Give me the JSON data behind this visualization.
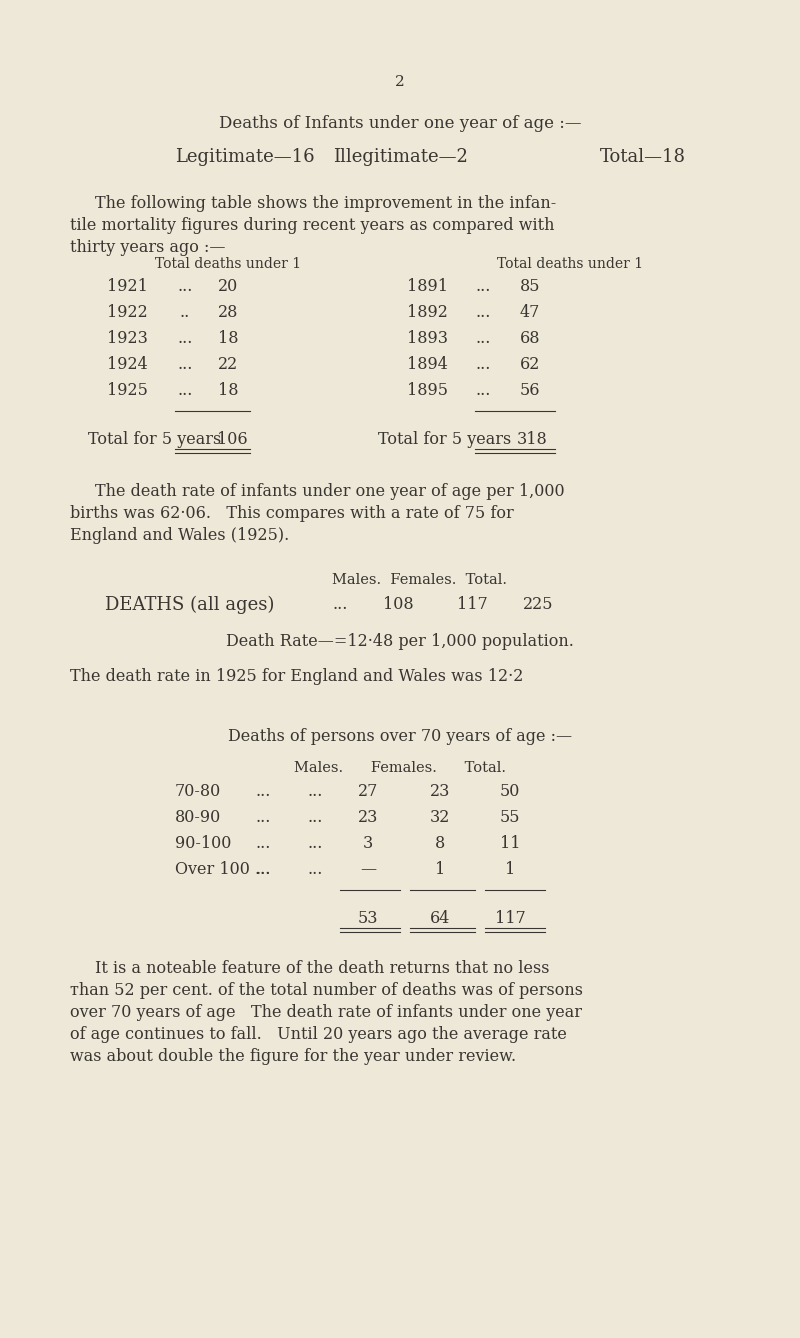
{
  "bg_color": "#ede8d8",
  "text_color": "#3a3530",
  "page_number": "2",
  "left_years": [
    "1921",
    "1922",
    "1923",
    "1924",
    "1925"
  ],
  "left_dots": [
    "...",
    "..",
    "...",
    "...",
    "..."
  ],
  "left_values": [
    "20",
    "28",
    "18",
    "22",
    "18"
  ],
  "right_years": [
    "1891",
    "1892",
    "1893",
    "1894",
    "1895"
  ],
  "right_dots": [
    "...",
    "...",
    "...",
    "...",
    "..."
  ],
  "right_values": [
    "85",
    "47",
    "68",
    "62",
    "56"
  ],
  "over70_ages": [
    "70-80",
    "80-90",
    "90-100",
    "Over 100 ..."
  ],
  "over70_dots1": [
    "...",
    "...",
    "...",
    "..."
  ],
  "over70_dots2": [
    "...",
    "...",
    "...",
    "..."
  ],
  "over70_males": [
    "27",
    "23",
    "3",
    "—"
  ],
  "over70_females": [
    "23",
    "32",
    "8",
    "1"
  ],
  "over70_totals_row": [
    "50",
    "55",
    "11",
    "1"
  ]
}
